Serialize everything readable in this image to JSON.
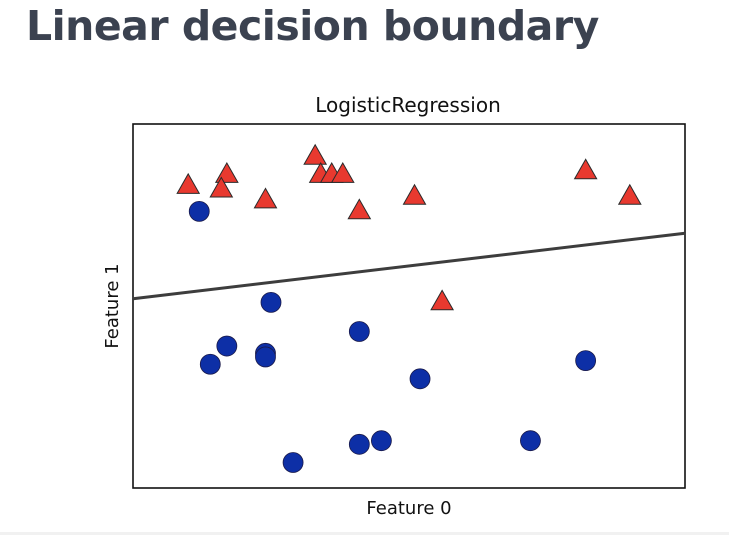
{
  "slide": {
    "title": "Linear decision boundary"
  },
  "chart_data": {
    "type": "scatter",
    "title": "LogisticRegression",
    "xlabel": "Feature 0",
    "ylabel": "Feature 1",
    "xlim": [
      0,
      10
    ],
    "ylim": [
      0,
      10
    ],
    "grid": false,
    "legend": false,
    "ticks": "none",
    "series": [
      {
        "marker": "triangle",
        "color": "#e8392f",
        "points": [
          {
            "x": 1.0,
            "y": 8.3
          },
          {
            "x": 1.7,
            "y": 8.6
          },
          {
            "x": 1.6,
            "y": 8.2
          },
          {
            "x": 2.4,
            "y": 7.9
          },
          {
            "x": 3.3,
            "y": 9.1
          },
          {
            "x": 3.4,
            "y": 8.6
          },
          {
            "x": 3.6,
            "y": 8.6
          },
          {
            "x": 3.8,
            "y": 8.6
          },
          {
            "x": 4.1,
            "y": 7.6
          },
          {
            "x": 5.1,
            "y": 8.0
          },
          {
            "x": 5.6,
            "y": 5.1
          },
          {
            "x": 8.2,
            "y": 8.7
          },
          {
            "x": 9.0,
            "y": 8.0
          }
        ]
      },
      {
        "marker": "circle",
        "color": "#0d2fa6",
        "points": [
          {
            "x": 1.2,
            "y": 7.6
          },
          {
            "x": 2.5,
            "y": 5.1
          },
          {
            "x": 4.1,
            "y": 4.3
          },
          {
            "x": 1.7,
            "y": 3.9
          },
          {
            "x": 2.4,
            "y": 3.7
          },
          {
            "x": 2.4,
            "y": 3.6
          },
          {
            "x": 1.4,
            "y": 3.4
          },
          {
            "x": 5.2,
            "y": 3.0
          },
          {
            "x": 8.2,
            "y": 3.5
          },
          {
            "x": 2.9,
            "y": 0.7
          },
          {
            "x": 4.1,
            "y": 1.2
          },
          {
            "x": 4.5,
            "y": 1.3
          },
          {
            "x": 7.2,
            "y": 1.3
          }
        ]
      }
    ],
    "decision_boundary": {
      "x": [
        0,
        10
      ],
      "y": [
        5.2,
        7.0
      ],
      "color": "#3d3d3d"
    }
  }
}
